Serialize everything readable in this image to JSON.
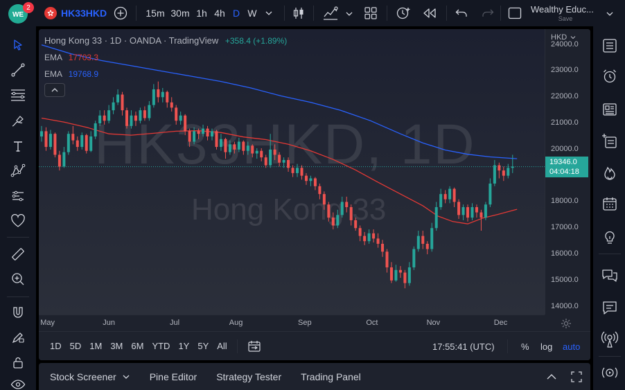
{
  "topbar": {
    "logo_badge": "2",
    "symbol": "HK33HKD",
    "intervals": [
      "15m",
      "30m",
      "1h",
      "4h",
      "D",
      "W"
    ],
    "active_interval": "D",
    "account_name": "Wealthy Educ...",
    "save_label": "Save",
    "accent": "#2962ff"
  },
  "legend": {
    "title": "Hong Kong 33 · 1D · OANDA · TradingView",
    "change": "+358.4 (+1.89%)",
    "ema1_label": "EMA",
    "ema1_value": "17703.3",
    "ema2_label": "EMA",
    "ema2_value": "19768.9"
  },
  "watermark": {
    "symbol": "HK33HKD, 1D",
    "name": "Hong Kong 33"
  },
  "price_axis": {
    "currency": "HKD",
    "labels": [
      "24000.0",
      "23000.0",
      "22000.0",
      "21000.0",
      "20000.0",
      "18000.0",
      "17000.0",
      "16000.0",
      "15000.0",
      "14000.0"
    ],
    "last_price": "19346.0",
    "countdown": "04:04:18"
  },
  "time_axis": {
    "labels": [
      "May",
      "Jun",
      "Jul",
      "Aug",
      "Sep",
      "Oct",
      "Nov",
      "Dec"
    ]
  },
  "range_bar": {
    "ranges": [
      "1D",
      "5D",
      "1M",
      "3M",
      "6M",
      "YTD",
      "1Y",
      "5Y",
      "All"
    ],
    "clock": "17:55:41 (UTC)",
    "percent": "%",
    "log": "log",
    "auto": "auto"
  },
  "bottom_panel": {
    "tabs": [
      "Stock Screener",
      "Pine Editor",
      "Strategy Tester",
      "Trading Panel"
    ]
  },
  "colors": {
    "up": "#26a69a",
    "down": "#ef5350",
    "ema_fast": "#e53935",
    "ema_slow": "#2962ff",
    "price_line": "#26a69a"
  },
  "chart_data": {
    "type": "candlestick",
    "ylim": [
      13700,
      24600
    ],
    "ema_fast": [
      [
        0,
        21200
      ],
      [
        15,
        21050
      ],
      [
        30,
        20850
      ],
      [
        45,
        20600
      ],
      [
        60,
        20550
      ],
      [
        75,
        20620
      ],
      [
        90,
        20700
      ],
      [
        105,
        20720
      ],
      [
        120,
        20650
      ],
      [
        135,
        20480
      ],
      [
        150,
        20380
      ],
      [
        165,
        20200
      ],
      [
        180,
        19950
      ],
      [
        195,
        19620
      ],
      [
        210,
        19220
      ],
      [
        225,
        18750
      ],
      [
        240,
        18300
      ],
      [
        255,
        17850
      ],
      [
        265,
        17460
      ],
      [
        275,
        17250
      ],
      [
        285,
        17160
      ],
      [
        295,
        17380
      ],
      [
        305,
        17520
      ],
      [
        318,
        17720
      ]
    ],
    "ema_slow": [
      [
        0,
        24000
      ],
      [
        20,
        23650
      ],
      [
        40,
        23400
      ],
      [
        60,
        23200
      ],
      [
        80,
        23000
      ],
      [
        100,
        22800
      ],
      [
        120,
        22600
      ],
      [
        140,
        22350
      ],
      [
        160,
        22050
      ],
      [
        180,
        21800
      ],
      [
        200,
        21500
      ],
      [
        220,
        21100
      ],
      [
        240,
        20600
      ],
      [
        255,
        20250
      ],
      [
        270,
        19980
      ],
      [
        285,
        19820
      ],
      [
        300,
        19720
      ],
      [
        318,
        19650
      ]
    ],
    "candles": [
      {
        "x": 0,
        "o": 20500,
        "c": 20700,
        "h": 20900,
        "l": 20300
      },
      {
        "x": 3,
        "o": 20700,
        "c": 20100,
        "h": 20850,
        "l": 19950
      },
      {
        "x": 6,
        "o": 20100,
        "c": 20600,
        "h": 20750,
        "l": 20000
      },
      {
        "x": 9,
        "o": 20600,
        "c": 19800,
        "h": 20650,
        "l": 19700
      },
      {
        "x": 12,
        "o": 19800,
        "c": 19350,
        "h": 19950,
        "l": 19200
      },
      {
        "x": 15,
        "o": 19350,
        "c": 19900,
        "h": 20100,
        "l": 19300
      },
      {
        "x": 18,
        "o": 19900,
        "c": 20600,
        "h": 20700,
        "l": 19800
      },
      {
        "x": 21,
        "o": 20600,
        "c": 20350,
        "h": 20900,
        "l": 20200
      },
      {
        "x": 24,
        "o": 20350,
        "c": 20100,
        "h": 20500,
        "l": 19950
      },
      {
        "x": 27,
        "o": 20100,
        "c": 20550,
        "h": 20650,
        "l": 20000
      },
      {
        "x": 30,
        "o": 20550,
        "c": 19950,
        "h": 20600,
        "l": 19850
      },
      {
        "x": 33,
        "o": 19950,
        "c": 20500,
        "h": 20700,
        "l": 19900
      },
      {
        "x": 36,
        "o": 20500,
        "c": 21000,
        "h": 21100,
        "l": 20400
      },
      {
        "x": 39,
        "o": 21000,
        "c": 21300,
        "h": 21500,
        "l": 20900
      },
      {
        "x": 42,
        "o": 21300,
        "c": 21100,
        "h": 21500,
        "l": 20950
      },
      {
        "x": 45,
        "o": 21100,
        "c": 21500,
        "h": 21700,
        "l": 21000
      },
      {
        "x": 48,
        "o": 21500,
        "c": 21800,
        "h": 22000,
        "l": 21350
      },
      {
        "x": 51,
        "o": 21800,
        "c": 22100,
        "h": 22300,
        "l": 21700
      },
      {
        "x": 54,
        "o": 22100,
        "c": 21500,
        "h": 22200,
        "l": 21300
      },
      {
        "x": 57,
        "o": 21500,
        "c": 20900,
        "h": 21600,
        "l": 20800
      },
      {
        "x": 60,
        "o": 20900,
        "c": 21300,
        "h": 21500,
        "l": 20800
      },
      {
        "x": 63,
        "o": 21300,
        "c": 21100,
        "h": 21450,
        "l": 20900
      },
      {
        "x": 66,
        "o": 21100,
        "c": 21500,
        "h": 21600,
        "l": 21000
      },
      {
        "x": 69,
        "o": 21500,
        "c": 21200,
        "h": 21650,
        "l": 21100
      },
      {
        "x": 72,
        "o": 21200,
        "c": 21700,
        "h": 21850,
        "l": 21100
      },
      {
        "x": 75,
        "o": 21700,
        "c": 22300,
        "h": 22500,
        "l": 21600
      },
      {
        "x": 78,
        "o": 22300,
        "c": 22000,
        "h": 22600,
        "l": 21800
      },
      {
        "x": 81,
        "o": 22000,
        "c": 22200,
        "h": 22350,
        "l": 21800
      },
      {
        "x": 84,
        "o": 22200,
        "c": 21800,
        "h": 22250,
        "l": 21600
      },
      {
        "x": 87,
        "o": 21800,
        "c": 21600,
        "h": 22000,
        "l": 21450
      },
      {
        "x": 90,
        "o": 21600,
        "c": 21100,
        "h": 21700,
        "l": 20950
      },
      {
        "x": 93,
        "o": 21100,
        "c": 21300,
        "h": 21450,
        "l": 20950
      },
      {
        "x": 96,
        "o": 21300,
        "c": 20700,
        "h": 21350,
        "l": 20550
      },
      {
        "x": 99,
        "o": 20700,
        "c": 20300,
        "h": 20800,
        "l": 20100
      },
      {
        "x": 102,
        "o": 20300,
        "c": 20700,
        "h": 20850,
        "l": 20200
      },
      {
        "x": 105,
        "o": 20700,
        "c": 20600,
        "h": 20800,
        "l": 20400
      },
      {
        "x": 108,
        "o": 20600,
        "c": 20800,
        "h": 20950,
        "l": 20500
      },
      {
        "x": 111,
        "o": 20800,
        "c": 20500,
        "h": 20900,
        "l": 20350
      },
      {
        "x": 114,
        "o": 20500,
        "c": 20700,
        "h": 20800,
        "l": 20350
      },
      {
        "x": 117,
        "o": 20700,
        "c": 20100,
        "h": 20750,
        "l": 20000
      },
      {
        "x": 120,
        "o": 20100,
        "c": 20400,
        "h": 20600,
        "l": 19950
      },
      {
        "x": 123,
        "o": 20400,
        "c": 19900,
        "h": 20450,
        "l": 19650
      },
      {
        "x": 126,
        "o": 19900,
        "c": 20200,
        "h": 20350,
        "l": 19800
      },
      {
        "x": 129,
        "o": 20200,
        "c": 20000,
        "h": 20300,
        "l": 19850
      },
      {
        "x": 132,
        "o": 20000,
        "c": 20300,
        "h": 20450,
        "l": 19900
      },
      {
        "x": 135,
        "o": 20300,
        "c": 19950,
        "h": 20350,
        "l": 19800
      },
      {
        "x": 138,
        "o": 19950,
        "c": 20150,
        "h": 20300,
        "l": 19800
      },
      {
        "x": 141,
        "o": 20150,
        "c": 19850,
        "h": 20200,
        "l": 19700
      },
      {
        "x": 144,
        "o": 19850,
        "c": 19950,
        "h": 20050,
        "l": 19650
      },
      {
        "x": 147,
        "o": 19950,
        "c": 19700,
        "h": 20050,
        "l": 19550
      },
      {
        "x": 150,
        "o": 19700,
        "c": 19400,
        "h": 19800,
        "l": 19300
      },
      {
        "x": 153,
        "o": 19400,
        "c": 20000,
        "h": 20600,
        "l": 19300
      },
      {
        "x": 156,
        "o": 20000,
        "c": 19800,
        "h": 20200,
        "l": 19600
      },
      {
        "x": 159,
        "o": 19800,
        "c": 19500,
        "h": 19900,
        "l": 19350
      },
      {
        "x": 162,
        "o": 19500,
        "c": 19600,
        "h": 19700,
        "l": 19300
      },
      {
        "x": 165,
        "o": 19600,
        "c": 19300,
        "h": 19700,
        "l": 19150
      },
      {
        "x": 168,
        "o": 19300,
        "c": 19100,
        "h": 19400,
        "l": 18950
      },
      {
        "x": 171,
        "o": 19100,
        "c": 19300,
        "h": 19450,
        "l": 18950
      },
      {
        "x": 174,
        "o": 19300,
        "c": 19000,
        "h": 19400,
        "l": 18850
      },
      {
        "x": 177,
        "o": 19000,
        "c": 18800,
        "h": 19100,
        "l": 18650
      },
      {
        "x": 180,
        "o": 18800,
        "c": 18900,
        "h": 19000,
        "l": 18600
      },
      {
        "x": 183,
        "o": 18900,
        "c": 18600,
        "h": 18950,
        "l": 18450
      },
      {
        "x": 186,
        "o": 18600,
        "c": 18300,
        "h": 18700,
        "l": 18100
      },
      {
        "x": 189,
        "o": 18300,
        "c": 17900,
        "h": 18400,
        "l": 17700
      },
      {
        "x": 192,
        "o": 17900,
        "c": 17400,
        "h": 18000,
        "l": 17250
      },
      {
        "x": 195,
        "o": 17400,
        "c": 17100,
        "h": 17600,
        "l": 16950
      },
      {
        "x": 198,
        "o": 17100,
        "c": 17500,
        "h": 17700,
        "l": 17000
      },
      {
        "x": 201,
        "o": 17500,
        "c": 18000,
        "h": 18200,
        "l": 17400
      },
      {
        "x": 204,
        "o": 18000,
        "c": 17800,
        "h": 18200,
        "l": 17600
      },
      {
        "x": 207,
        "o": 17800,
        "c": 17300,
        "h": 17900,
        "l": 17100
      },
      {
        "x": 210,
        "o": 17300,
        "c": 17000,
        "h": 17400,
        "l": 16900
      },
      {
        "x": 213,
        "o": 17000,
        "c": 16700,
        "h": 17100,
        "l": 16500
      },
      {
        "x": 216,
        "o": 16700,
        "c": 16500,
        "h": 16850,
        "l": 16350
      },
      {
        "x": 219,
        "o": 16500,
        "c": 16800,
        "h": 16950,
        "l": 16400
      },
      {
        "x": 222,
        "o": 16800,
        "c": 16600,
        "h": 16950,
        "l": 16450
      },
      {
        "x": 225,
        "o": 16600,
        "c": 16400,
        "h": 16800,
        "l": 16250
      },
      {
        "x": 228,
        "o": 16400,
        "c": 16100,
        "h": 16550,
        "l": 15900
      },
      {
        "x": 231,
        "o": 16100,
        "c": 15500,
        "h": 16200,
        "l": 15300
      },
      {
        "x": 234,
        "o": 15500,
        "c": 15000,
        "h": 15700,
        "l": 14900
      },
      {
        "x": 237,
        "o": 15000,
        "c": 15400,
        "h": 15600,
        "l": 14950
      },
      {
        "x": 240,
        "o": 15400,
        "c": 15300,
        "h": 15550,
        "l": 15100
      },
      {
        "x": 243,
        "o": 15300,
        "c": 14900,
        "h": 15400,
        "l": 14700
      },
      {
        "x": 246,
        "o": 14900,
        "c": 15500,
        "h": 15700,
        "l": 14800
      },
      {
        "x": 249,
        "o": 15500,
        "c": 16200,
        "h": 16300,
        "l": 15400
      },
      {
        "x": 252,
        "o": 16200,
        "c": 16700,
        "h": 16900,
        "l": 16100
      },
      {
        "x": 255,
        "o": 16700,
        "c": 16400,
        "h": 16900,
        "l": 16200
      },
      {
        "x": 258,
        "o": 16400,
        "c": 16200,
        "h": 16500,
        "l": 16000
      },
      {
        "x": 261,
        "o": 16200,
        "c": 17000,
        "h": 17200,
        "l": 16100
      },
      {
        "x": 264,
        "o": 17000,
        "c": 17800,
        "h": 18000,
        "l": 16900
      },
      {
        "x": 267,
        "o": 17800,
        "c": 18300,
        "h": 18500,
        "l": 17700
      },
      {
        "x": 270,
        "o": 18300,
        "c": 18100,
        "h": 18450,
        "l": 17950
      },
      {
        "x": 273,
        "o": 18100,
        "c": 18500,
        "h": 18600,
        "l": 17950
      },
      {
        "x": 276,
        "o": 18500,
        "c": 18000,
        "h": 18550,
        "l": 17800
      },
      {
        "x": 279,
        "o": 18000,
        "c": 17500,
        "h": 18100,
        "l": 17350
      },
      {
        "x": 282,
        "o": 17500,
        "c": 17800,
        "h": 17900,
        "l": 17300
      },
      {
        "x": 285,
        "o": 17800,
        "c": 17400,
        "h": 17900,
        "l": 17250
      },
      {
        "x": 288,
        "o": 17400,
        "c": 17800,
        "h": 17950,
        "l": 17300
      },
      {
        "x": 291,
        "o": 17800,
        "c": 17600,
        "h": 17900,
        "l": 17400
      },
      {
        "x": 294,
        "o": 17600,
        "c": 17400,
        "h": 17700,
        "l": 16900
      },
      {
        "x": 297,
        "o": 17400,
        "c": 17900,
        "h": 18000,
        "l": 17300
      },
      {
        "x": 300,
        "o": 17900,
        "c": 18700,
        "h": 18900,
        "l": 17800
      },
      {
        "x": 303,
        "o": 18700,
        "c": 19400,
        "h": 19600,
        "l": 18600
      },
      {
        "x": 306,
        "o": 19400,
        "c": 19200,
        "h": 19500,
        "l": 18900
      },
      {
        "x": 309,
        "o": 19200,
        "c": 19000,
        "h": 19350,
        "l": 18800
      },
      {
        "x": 312,
        "o": 19000,
        "c": 19300,
        "h": 19450,
        "l": 18900
      },
      {
        "x": 315,
        "o": 19300,
        "c": 19346,
        "h": 19800,
        "l": 19100
      }
    ]
  }
}
